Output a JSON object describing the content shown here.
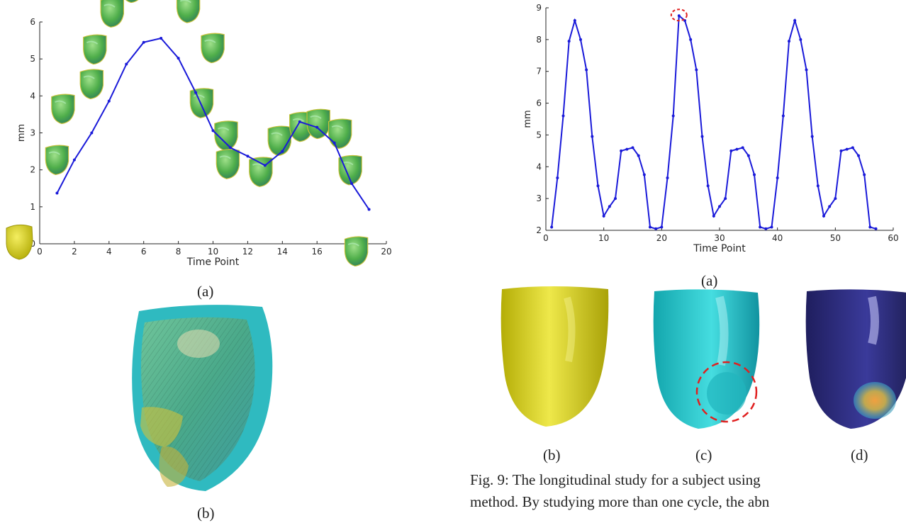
{
  "colors": {
    "line": "#1a1ad9",
    "heart_green": "#5cb85c",
    "heart_yellow": "#d6cf18",
    "heart_cyan": "#22c8d0",
    "heart_navy": "#2b2a7a",
    "highlight_red": "#e02020"
  },
  "left_chart_caption": "(a)",
  "left_heart_caption": "(b)",
  "right_chart_caption": "(a)",
  "shape_captions": [
    "(b)",
    "(c)",
    "(d)"
  ],
  "figure_caption": {
    "line1": "Fig. 9: The longitudinal study for a subject using",
    "line2": "method. By studying more than one cycle, the abn"
  },
  "chart_data": [
    {
      "type": "line",
      "title": "",
      "xlabel": "Time Point",
      "ylabel": "mm",
      "xlim": [
        0,
        20
      ],
      "ylim": [
        0,
        6
      ],
      "xticks": [
        "0",
        "2",
        "4",
        "6",
        "8",
        "10",
        "12",
        "14",
        "16",
        "18",
        "20"
      ],
      "yticks": [
        "0",
        "1",
        "2",
        "3",
        "4",
        "5",
        "6"
      ],
      "grid": false,
      "x": [
        1,
        2,
        3,
        4,
        5,
        6,
        7,
        8,
        9,
        10,
        11,
        12,
        13,
        14,
        15,
        16,
        17,
        18,
        19
      ],
      "y": [
        1.37,
        2.27,
        3.0,
        3.86,
        4.86,
        5.45,
        5.56,
        5.02,
        4.09,
        3.06,
        2.6,
        2.37,
        2.12,
        2.5,
        3.3,
        3.15,
        2.73,
        1.63,
        0.93
      ],
      "annotations": "heart mesh thumbnails along the curve"
    },
    {
      "type": "line",
      "title": "",
      "xlabel": "Time Point",
      "ylabel": "mm",
      "xlim": [
        0,
        60
      ],
      "ylim": [
        2,
        9
      ],
      "xticks": [
        "0",
        "10",
        "20",
        "30",
        "40",
        "50",
        "60"
      ],
      "yticks": [
        "2",
        "3",
        "4",
        "5",
        "6",
        "7",
        "8",
        "9"
      ],
      "grid": false,
      "x": [
        1,
        2,
        3,
        4,
        5,
        6,
        7,
        8,
        9,
        10,
        11,
        12,
        13,
        14,
        15,
        16,
        17,
        18,
        19,
        20,
        21,
        22,
        23,
        24,
        25,
        26,
        27,
        28,
        29,
        30,
        31,
        32,
        33,
        34,
        35,
        36,
        37,
        38,
        39,
        40,
        41,
        42,
        43,
        44,
        45,
        46,
        47,
        48,
        49,
        50,
        51,
        52,
        53,
        54,
        55,
        56,
        57
      ],
      "y": [
        2.1,
        3.65,
        5.6,
        7.95,
        8.6,
        8.0,
        7.05,
        4.95,
        3.4,
        2.45,
        2.75,
        3.0,
        4.5,
        4.55,
        4.6,
        4.35,
        3.75,
        2.1,
        2.05,
        2.1,
        3.65,
        5.6,
        8.75,
        8.6,
        8.0,
        7.05,
        4.95,
        3.4,
        2.45,
        2.75,
        3.0,
        4.5,
        4.55,
        4.6,
        4.35,
        3.75,
        2.1,
        2.05,
        2.1,
        3.65,
        5.6,
        7.95,
        8.6,
        8.0,
        7.05,
        4.95,
        3.4,
        2.45,
        2.75,
        3.0,
        4.5,
        4.55,
        4.6,
        4.35,
        3.75,
        2.1,
        2.05
      ],
      "highlight_point": {
        "x": 23,
        "y": 8.75
      }
    }
  ]
}
